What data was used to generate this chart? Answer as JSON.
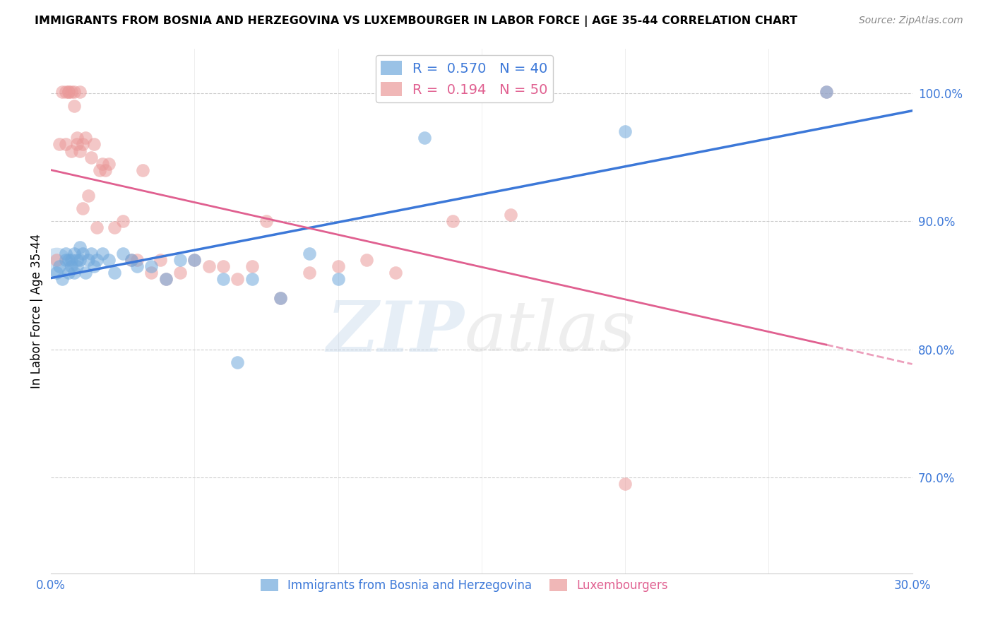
{
  "title": "IMMIGRANTS FROM BOSNIA AND HERZEGOVINA VS LUXEMBOURGER IN LABOR FORCE | AGE 35-44 CORRELATION CHART",
  "source": "Source: ZipAtlas.com",
  "ylabel": "In Labor Force | Age 35-44",
  "right_yticks": [
    0.7,
    0.8,
    0.9,
    1.0
  ],
  "right_ytick_labels": [
    "70.0%",
    "80.0%",
    "90.0%",
    "100.0%"
  ],
  "xlim": [
    0.0,
    0.3
  ],
  "ylim": [
    0.625,
    1.035
  ],
  "blue_color": "#6fa8dc",
  "pink_color": "#ea9999",
  "blue_line_color": "#3c78d8",
  "pink_line_color": "#e06090",
  "blue_R": 0.57,
  "blue_N": 40,
  "pink_R": 0.194,
  "pink_N": 50,
  "legend_label_blue": "Immigrants from Bosnia and Herzegovina",
  "legend_label_pink": "Luxembourgers",
  "blue_points_x": [
    0.002,
    0.003,
    0.004,
    0.005,
    0.005,
    0.006,
    0.006,
    0.007,
    0.007,
    0.008,
    0.008,
    0.009,
    0.009,
    0.01,
    0.01,
    0.011,
    0.012,
    0.013,
    0.014,
    0.015,
    0.016,
    0.018,
    0.02,
    0.022,
    0.025,
    0.028,
    0.03,
    0.035,
    0.04,
    0.045,
    0.05,
    0.06,
    0.065,
    0.07,
    0.08,
    0.09,
    0.1,
    0.13,
    0.2,
    0.27
  ],
  "blue_points_y": [
    0.86,
    0.865,
    0.855,
    0.87,
    0.875,
    0.86,
    0.87,
    0.865,
    0.87,
    0.86,
    0.875,
    0.87,
    0.865,
    0.87,
    0.88,
    0.875,
    0.86,
    0.87,
    0.875,
    0.865,
    0.87,
    0.875,
    0.87,
    0.86,
    0.875,
    0.87,
    0.865,
    0.865,
    0.855,
    0.87,
    0.87,
    0.855,
    0.79,
    0.855,
    0.84,
    0.875,
    0.855,
    0.965,
    0.97,
    1.001
  ],
  "pink_points_x": [
    0.002,
    0.003,
    0.004,
    0.005,
    0.005,
    0.006,
    0.006,
    0.007,
    0.007,
    0.008,
    0.008,
    0.009,
    0.009,
    0.01,
    0.01,
    0.011,
    0.011,
    0.012,
    0.013,
    0.014,
    0.015,
    0.016,
    0.017,
    0.018,
    0.019,
    0.02,
    0.022,
    0.025,
    0.028,
    0.03,
    0.032,
    0.035,
    0.038,
    0.04,
    0.045,
    0.05,
    0.055,
    0.06,
    0.065,
    0.07,
    0.075,
    0.08,
    0.09,
    0.1,
    0.11,
    0.12,
    0.14,
    0.16,
    0.2,
    0.27
  ],
  "pink_points_y": [
    0.87,
    0.96,
    1.001,
    1.001,
    0.96,
    1.001,
    1.001,
    1.001,
    0.955,
    1.001,
    0.99,
    0.965,
    0.96,
    1.001,
    0.955,
    0.96,
    0.91,
    0.965,
    0.92,
    0.95,
    0.96,
    0.895,
    0.94,
    0.945,
    0.94,
    0.945,
    0.895,
    0.9,
    0.87,
    0.87,
    0.94,
    0.86,
    0.87,
    0.855,
    0.86,
    0.87,
    0.865,
    0.865,
    0.855,
    0.865,
    0.9,
    0.84,
    0.86,
    0.865,
    0.87,
    0.86,
    0.9,
    0.905,
    0.695,
    1.001
  ]
}
